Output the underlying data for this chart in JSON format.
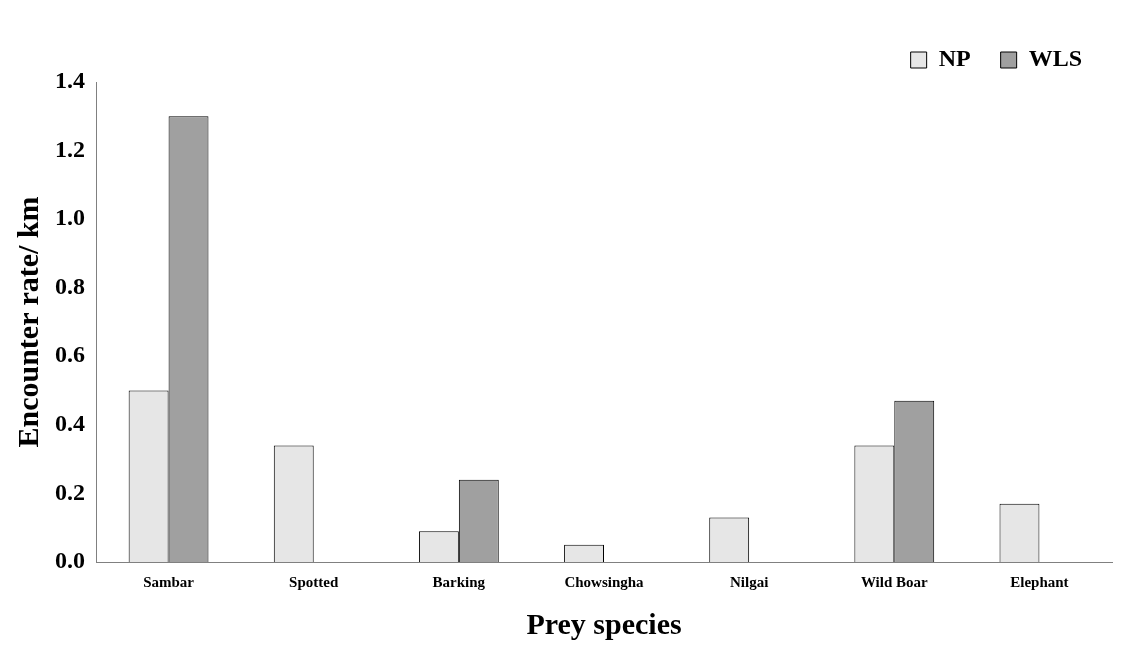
{
  "chart_data": {
    "type": "bar",
    "xlabel": "Prey species",
    "ylabel": "Encounter rate/ km",
    "categories": [
      "Sambar",
      "Spotted",
      "Barking",
      "Chowsingha",
      "Nilgai",
      "Wild Boar",
      "Elephant"
    ],
    "series": [
      {
        "name": "NP",
        "color": "#e6e6e6",
        "values": [
          0.5,
          0.34,
          0.09,
          0.05,
          0.13,
          0.34,
          0.17
        ]
      },
      {
        "name": "WLS",
        "color": "#a0a0a0",
        "values": [
          1.3,
          null,
          0.24,
          null,
          null,
          0.47,
          null
        ]
      }
    ],
    "ylim": [
      0,
      1.4
    ],
    "yticks": [
      {
        "value": 0,
        "label": "0.0"
      },
      {
        "value": 0.2,
        "label": "0.2"
      },
      {
        "value": 0.4,
        "label": "0.4"
      },
      {
        "value": 0.6,
        "label": "0.6"
      },
      {
        "value": 0.8,
        "label": "0.8"
      },
      {
        "value": 1,
        "label": "1.0"
      },
      {
        "value": 1.2,
        "label": "1.2"
      },
      {
        "value": 1.4,
        "label": "1.4"
      }
    ],
    "grid": false,
    "legend": "top right"
  }
}
